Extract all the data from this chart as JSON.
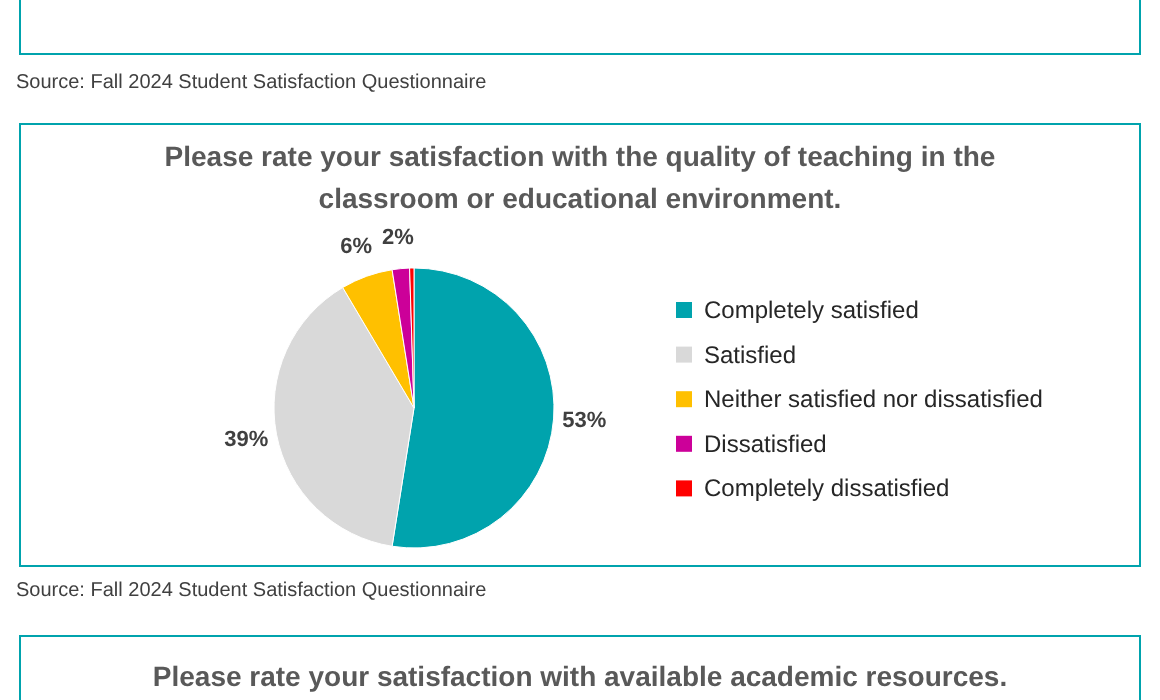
{
  "chart_data": {
    "type": "pie",
    "title": "Please rate your satisfaction with the quality of teaching in the classroom or educational environment.",
    "categories": [
      "Completely satisfied",
      "Satisfied",
      "Neither satisfied nor dissatisfied",
      "Dissatisfied",
      "Completely dissatisfied"
    ],
    "values": [
      52.5,
      39,
      6,
      2,
      0.5
    ],
    "colors": [
      "#00a3ad",
      "#d9d9d9",
      "#ffc000",
      "#cc0099",
      "#ff0000"
    ],
    "value_labels": [
      "53%",
      "39%",
      "6%",
      "2%",
      null
    ],
    "legend": "right",
    "annotations": [
      "Source: Fall 2024 Student Satisfaction Questionnaire",
      "Source: Fall 2024 Student Satisfaction Questionnaire",
      "Please rate your satisfaction with available academic resources."
    ]
  }
}
